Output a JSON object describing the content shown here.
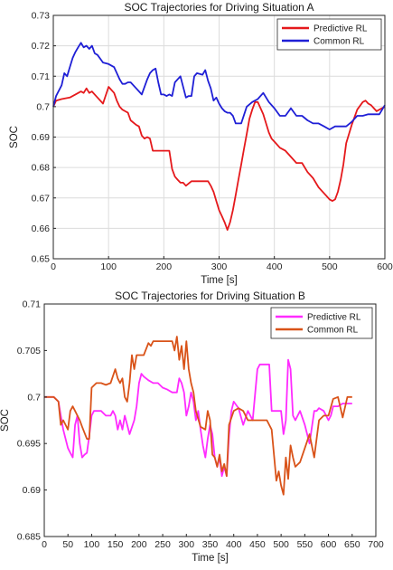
{
  "chart_data": [
    {
      "type": "line",
      "title": "SOC Trajectories for Driving Situation A",
      "xlabel": "Time [s]",
      "ylabel": "SOC",
      "xlim": [
        0,
        600
      ],
      "ylim": [
        0.65,
        0.73
      ],
      "xticks": [
        "0",
        "100",
        "200",
        "300",
        "400",
        "500",
        "600"
      ],
      "yticks": [
        "0.65",
        "0.66",
        "0.67",
        "0.68",
        "0.69",
        "0.7",
        "0.71",
        "0.72",
        "0.73"
      ],
      "grid": true,
      "legend_position": "top-right",
      "series": [
        {
          "name": "Predictive RL",
          "color": "#e5191c",
          "x": [
            0,
            5,
            15,
            30,
            40,
            50,
            55,
            60,
            65,
            70,
            80,
            90,
            100,
            110,
            115,
            120,
            125,
            130,
            135,
            140,
            150,
            155,
            160,
            165,
            170,
            175,
            180,
            185,
            190,
            200,
            210,
            215,
            220,
            225,
            230,
            235,
            240,
            250,
            260,
            270,
            275,
            280,
            285,
            290,
            295,
            300,
            305,
            310,
            315,
            320,
            325,
            330,
            335,
            340,
            345,
            350,
            355,
            360,
            365,
            370,
            380,
            385,
            390,
            395,
            400,
            410,
            420,
            430,
            440,
            450,
            460,
            470,
            480,
            490,
            500,
            505,
            510,
            515,
            520,
            525,
            530,
            540,
            550,
            560,
            565,
            570,
            575,
            580,
            585,
            590,
            595,
            600
          ],
          "y": [
            0.7,
            0.702,
            0.7025,
            0.703,
            0.704,
            0.705,
            0.7045,
            0.706,
            0.7045,
            0.705,
            0.703,
            0.701,
            0.7065,
            0.7045,
            0.702,
            0.7,
            0.699,
            0.6985,
            0.698,
            0.6955,
            0.694,
            0.6935,
            0.6905,
            0.6895,
            0.69,
            0.6895,
            0.6855,
            0.6855,
            0.6855,
            0.6855,
            0.6855,
            0.6795,
            0.677,
            0.676,
            0.675,
            0.675,
            0.674,
            0.6755,
            0.6755,
            0.6755,
            0.6755,
            0.6755,
            0.674,
            0.672,
            0.669,
            0.666,
            0.664,
            0.662,
            0.6595,
            0.662,
            0.666,
            0.671,
            0.676,
            0.681,
            0.686,
            0.691,
            0.696,
            0.699,
            0.7015,
            0.7015,
            0.6975,
            0.6945,
            0.6915,
            0.6895,
            0.6885,
            0.6865,
            0.6855,
            0.6835,
            0.6815,
            0.6815,
            0.6785,
            0.6765,
            0.6735,
            0.6715,
            0.6695,
            0.669,
            0.6695,
            0.672,
            0.676,
            0.681,
            0.688,
            0.694,
            0.699,
            0.7015,
            0.702,
            0.701,
            0.7005,
            0.6995,
            0.6985,
            0.699,
            0.6995,
            0.7
          ]
        },
        {
          "name": "Common RL",
          "color": "#1f1fd6",
          "x": [
            0,
            5,
            15,
            20,
            25,
            30,
            35,
            40,
            45,
            50,
            55,
            60,
            65,
            70,
            75,
            80,
            90,
            100,
            110,
            120,
            125,
            130,
            135,
            140,
            150,
            160,
            170,
            175,
            180,
            185,
            190,
            195,
            200,
            205,
            210,
            215,
            220,
            230,
            240,
            245,
            250,
            255,
            260,
            270,
            275,
            280,
            285,
            290,
            295,
            300,
            305,
            310,
            315,
            320,
            325,
            330,
            340,
            350,
            360,
            370,
            380,
            390,
            400,
            410,
            420,
            430,
            440,
            450,
            460,
            470,
            480,
            490,
            500,
            510,
            520,
            530,
            540,
            550,
            560,
            570,
            580,
            590,
            600
          ],
          "y": [
            0.7,
            0.7035,
            0.707,
            0.711,
            0.71,
            0.713,
            0.716,
            0.718,
            0.7195,
            0.721,
            0.7195,
            0.72,
            0.719,
            0.72,
            0.7175,
            0.717,
            0.7145,
            0.714,
            0.713,
            0.709,
            0.7075,
            0.7075,
            0.708,
            0.708,
            0.706,
            0.704,
            0.709,
            0.711,
            0.712,
            0.7125,
            0.708,
            0.704,
            0.704,
            0.7035,
            0.704,
            0.7035,
            0.708,
            0.71,
            0.703,
            0.7035,
            0.7035,
            0.71,
            0.711,
            0.7105,
            0.712,
            0.7085,
            0.706,
            0.702,
            0.703,
            0.701,
            0.6995,
            0.6985,
            0.698,
            0.698,
            0.697,
            0.6945,
            0.6945,
            0.7,
            0.7015,
            0.7025,
            0.7045,
            0.7015,
            0.6995,
            0.697,
            0.697,
            0.6995,
            0.697,
            0.697,
            0.6955,
            0.6945,
            0.6945,
            0.6935,
            0.6925,
            0.6935,
            0.6935,
            0.6935,
            0.695,
            0.697,
            0.697,
            0.6975,
            0.6975,
            0.6975,
            0.7005
          ]
        }
      ]
    },
    {
      "type": "line",
      "title": "SOC Trajectories for Driving Situation B",
      "xlabel": "Time [s]",
      "ylabel": "SOC",
      "xlim": [
        0,
        700
      ],
      "ylim": [
        0.685,
        0.71
      ],
      "xticks": [
        "0",
        "50",
        "100",
        "150",
        "200",
        "250",
        "300",
        "350",
        "400",
        "450",
        "500",
        "550",
        "600",
        "650",
        "700"
      ],
      "yticks": [
        "0.685",
        "0.69",
        "0.695",
        "0.7",
        "0.705",
        "0.71"
      ],
      "grid": false,
      "legend_position": "top-right",
      "series": [
        {
          "name": "Predictive RL",
          "color": "#ff2bff",
          "x": [
            0,
            10,
            20,
            30,
            35,
            40,
            45,
            50,
            55,
            60,
            65,
            70,
            75,
            80,
            85,
            90,
            95,
            100,
            105,
            110,
            120,
            130,
            140,
            145,
            150,
            155,
            160,
            165,
            170,
            175,
            180,
            190,
            195,
            200,
            205,
            210,
            220,
            230,
            240,
            250,
            260,
            270,
            280,
            285,
            290,
            295,
            300,
            305,
            310,
            315,
            320,
            325,
            330,
            335,
            340,
            345,
            350,
            355,
            360,
            365,
            370,
            375,
            380,
            385,
            390,
            395,
            400,
            410,
            420,
            430,
            440,
            450,
            455,
            460,
            465,
            470,
            475,
            480,
            490,
            500,
            505,
            510,
            515,
            520,
            525,
            530,
            540,
            550,
            560,
            570,
            575,
            580,
            590,
            600,
            605,
            610,
            620,
            630,
            640,
            650
          ],
          "y": [
            0.7,
            0.7,
            0.7,
            0.6995,
            0.698,
            0.6965,
            0.6955,
            0.6945,
            0.694,
            0.6935,
            0.697,
            0.698,
            0.695,
            0.6935,
            0.6938,
            0.694,
            0.6958,
            0.698,
            0.6985,
            0.6985,
            0.6985,
            0.698,
            0.698,
            0.6985,
            0.698,
            0.6965,
            0.6975,
            0.6965,
            0.698,
            0.697,
            0.696,
            0.6975,
            0.699,
            0.7015,
            0.7025,
            0.7022,
            0.7018,
            0.7015,
            0.7015,
            0.701,
            0.7008,
            0.7005,
            0.7005,
            0.702,
            0.7015,
            0.7005,
            0.698,
            0.699,
            0.7005,
            0.6995,
            0.6975,
            0.6985,
            0.6965,
            0.6948,
            0.6935,
            0.6955,
            0.697,
            0.696,
            0.6935,
            0.6925,
            0.6935,
            0.6915,
            0.6925,
            0.6915,
            0.6958,
            0.6985,
            0.6995,
            0.6988,
            0.697,
            0.6985,
            0.6975,
            0.703,
            0.7035,
            0.7035,
            0.7035,
            0.7035,
            0.7035,
            0.6985,
            0.6985,
            0.6985,
            0.696,
            0.6975,
            0.704,
            0.703,
            0.698,
            0.6975,
            0.6985,
            0.697,
            0.695,
            0.6985,
            0.6985,
            0.6988,
            0.6985,
            0.6975,
            0.698,
            0.699,
            0.699,
            0.6993,
            0.6993,
            0.6993
          ]
        },
        {
          "name": "Common RL",
          "color": "#d95319",
          "x": [
            0,
            10,
            20,
            30,
            35,
            40,
            45,
            50,
            55,
            60,
            65,
            70,
            75,
            80,
            90,
            95,
            100,
            110,
            120,
            130,
            140,
            150,
            155,
            160,
            165,
            170,
            175,
            180,
            185,
            190,
            195,
            200,
            210,
            220,
            225,
            230,
            240,
            250,
            260,
            270,
            275,
            280,
            285,
            290,
            295,
            300,
            305,
            310,
            315,
            320,
            330,
            340,
            345,
            350,
            355,
            360,
            365,
            370,
            375,
            380,
            385,
            390,
            400,
            410,
            420,
            430,
            440,
            450,
            460,
            470,
            480,
            490,
            495,
            500,
            505,
            510,
            515,
            520,
            525,
            530,
            540,
            550,
            560,
            570,
            580,
            590,
            600,
            610,
            620,
            630,
            640,
            650
          ],
          "y": [
            0.7,
            0.7,
            0.7,
            0.6995,
            0.697,
            0.6975,
            0.697,
            0.6965,
            0.6985,
            0.699,
            0.6985,
            0.698,
            0.6975,
            0.6968,
            0.6955,
            0.6955,
            0.701,
            0.7015,
            0.7015,
            0.7013,
            0.7015,
            0.703,
            0.702,
            0.7015,
            0.702,
            0.7,
            0.6995,
            0.7015,
            0.7045,
            0.703,
            0.7045,
            0.7045,
            0.7045,
            0.7058,
            0.7055,
            0.706,
            0.706,
            0.706,
            0.706,
            0.706,
            0.705,
            0.7065,
            0.704,
            0.7055,
            0.703,
            0.706,
            0.703,
            0.7015,
            0.7005,
            0.6985,
            0.6968,
            0.6965,
            0.6985,
            0.6975,
            0.6938,
            0.6935,
            0.6925,
            0.6938,
            0.692,
            0.6928,
            0.6915,
            0.697,
            0.6985,
            0.6988,
            0.6985,
            0.6975,
            0.6975,
            0.6975,
            0.6975,
            0.6975,
            0.6965,
            0.691,
            0.692,
            0.6905,
            0.6895,
            0.6935,
            0.6912,
            0.6948,
            0.6935,
            0.6925,
            0.693,
            0.6945,
            0.696,
            0.6935,
            0.6975,
            0.698,
            0.698,
            0.6998,
            0.7,
            0.6978,
            0.7,
            0.7
          ]
        }
      ]
    }
  ]
}
